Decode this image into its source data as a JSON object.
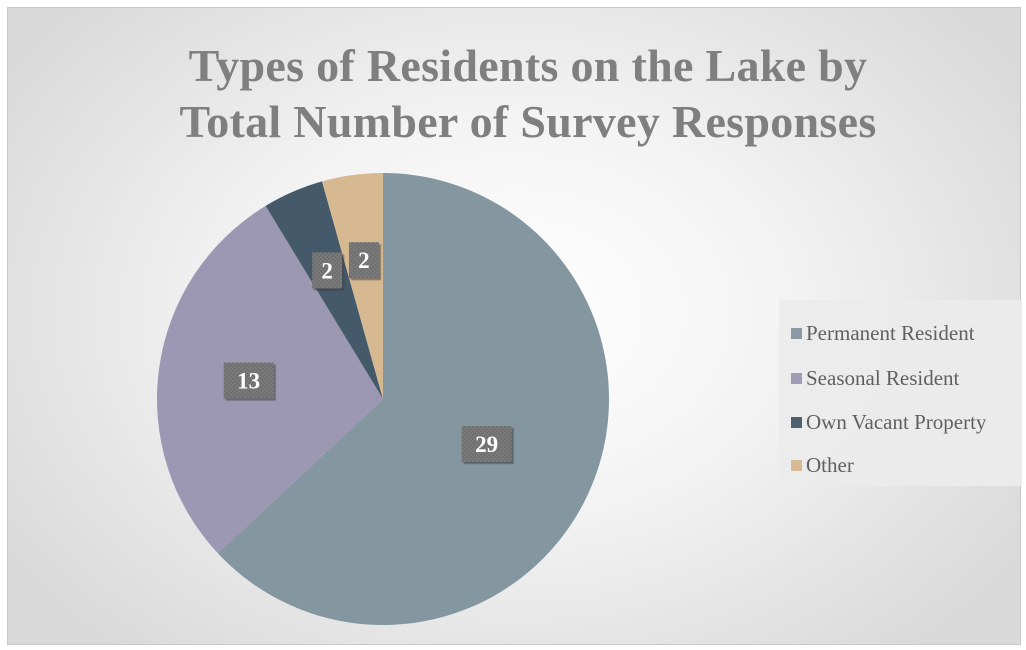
{
  "chart_data": {
    "type": "pie",
    "title": "Types of Residents on the Lake by Total Number of Survey Responses",
    "title_lines": [
      "Types of Residents on the Lake by",
      "Total Number of Survey Responses"
    ],
    "categories": [
      "Permanent Resident",
      "Seasonal Resident",
      "Own Vacant Property",
      "Other"
    ],
    "values": [
      29,
      13,
      2,
      2
    ],
    "data_labels": [
      "29",
      "13",
      "2",
      "2"
    ],
    "colors": [
      "#8496a0",
      "#9c98b3",
      "#44596a",
      "#d6b991"
    ],
    "legend_position": "right",
    "start_angle_deg": 0,
    "direction": "clockwise"
  }
}
